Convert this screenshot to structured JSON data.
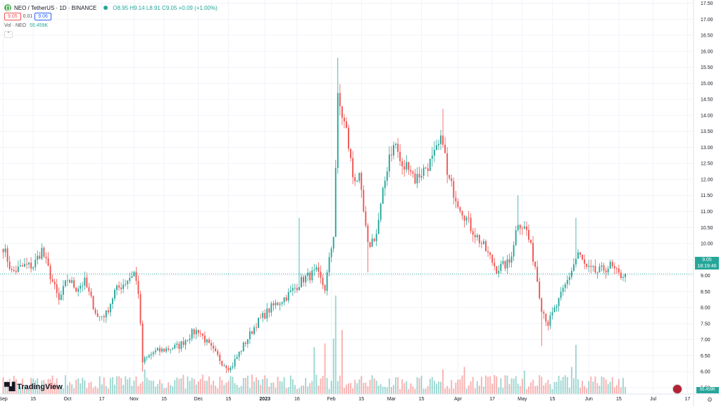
{
  "header": {
    "title": "NEO / TetherUS · 1D · BINANCE",
    "ohlc": "O8.95 H9.14 L8.91 C9.05 +0.09 (+1.00%)",
    "sell_price": "9.05",
    "spread": "0.01",
    "buy_price": "9.06",
    "volume_label": "Vol · NEO",
    "volume_value": "55.459K",
    "collapse_icon": "chevron-up-icon"
  },
  "branding": {
    "logo_text": "TradingView"
  },
  "last_price": {
    "value": "9.05",
    "countdown": "18:19:46"
  },
  "last_volume": "55.459K",
  "colors": {
    "up": "#26a69a",
    "down": "#ef5350",
    "grid": "#f0f3fa",
    "axis_text": "#131722"
  },
  "chart_data": {
    "type": "candlestick",
    "title": "NEO / TetherUS · 1D · BINANCE",
    "ylim": [
      5.3,
      17.6
    ],
    "y_ticks": [
      "5.50",
      "6.00",
      "6.50",
      "7.00",
      "7.50",
      "8.00",
      "8.50",
      "9.00",
      "9.50",
      "10.00",
      "10.50",
      "11.00",
      "11.50",
      "12.00",
      "12.50",
      "13.00",
      "13.50",
      "14.00",
      "14.50",
      "15.00",
      "15.50",
      "16.00",
      "16.50",
      "17.00",
      "17.50"
    ],
    "x_ticks": [
      "Sep",
      "15",
      "Oct",
      "17",
      "Nov",
      "15",
      "Dec",
      "15",
      "2023",
      "16",
      "Feb",
      "15",
      "Mar",
      "15",
      "Apr",
      "17",
      "May",
      "15",
      "Jun",
      "15",
      "Jul",
      "17"
    ],
    "x_tick_days": [
      0,
      14,
      30,
      46,
      61,
      75,
      91,
      105,
      122,
      137,
      153,
      167,
      181,
      195,
      212,
      228,
      242,
      256,
      273,
      287,
      303,
      319
    ],
    "total_days": 322,
    "anchors": [
      [
        0,
        9.9
      ],
      [
        4,
        9.1
      ],
      [
        10,
        9.3
      ],
      [
        14,
        9.3
      ],
      [
        18,
        9.8
      ],
      [
        22,
        9.0
      ],
      [
        26,
        8.2
      ],
      [
        30,
        8.9
      ],
      [
        34,
        8.6
      ],
      [
        38,
        8.8
      ],
      [
        44,
        7.7
      ],
      [
        48,
        7.8
      ],
      [
        52,
        8.5
      ],
      [
        57,
        8.8
      ],
      [
        61,
        9.1
      ],
      [
        63,
        8.5
      ],
      [
        65,
        6.3
      ],
      [
        70,
        6.6
      ],
      [
        76,
        6.7
      ],
      [
        82,
        6.8
      ],
      [
        88,
        7.2
      ],
      [
        91,
        7.3
      ],
      [
        96,
        6.8
      ],
      [
        102,
        6.3
      ],
      [
        106,
        6.1
      ],
      [
        111,
        6.7
      ],
      [
        118,
        7.5
      ],
      [
        125,
        8.0
      ],
      [
        133,
        8.4
      ],
      [
        140,
        8.9
      ],
      [
        146,
        9.1
      ],
      [
        150,
        8.6
      ],
      [
        154,
        10.3
      ],
      [
        156,
        14.5
      ],
      [
        160,
        13.5
      ],
      [
        163,
        12.1
      ],
      [
        166,
        12.0
      ],
      [
        170,
        9.9
      ],
      [
        174,
        10.3
      ],
      [
        180,
        12.8
      ],
      [
        183,
        13.1
      ],
      [
        186,
        12.3
      ],
      [
        189,
        12.5
      ],
      [
        192,
        12.0
      ],
      [
        196,
        12.3
      ],
      [
        200,
        12.6
      ],
      [
        205,
        13.3
      ],
      [
        207,
        12.1
      ],
      [
        212,
        11.3
      ],
      [
        218,
        10.5
      ],
      [
        224,
        9.9
      ],
      [
        230,
        9.2
      ],
      [
        236,
        9.4
      ],
      [
        240,
        10.7
      ],
      [
        244,
        10.4
      ],
      [
        248,
        9.3
      ],
      [
        251,
        8.0
      ],
      [
        254,
        7.5
      ],
      [
        259,
        8.2
      ],
      [
        264,
        9.0
      ],
      [
        268,
        9.7
      ],
      [
        272,
        9.2
      ],
      [
        277,
        9.1
      ],
      [
        283,
        9.3
      ],
      [
        287,
        9.0
      ],
      [
        290,
        9.05
      ]
    ],
    "extreme_highs": [
      [
        156,
        15.8
      ],
      [
        205,
        14.2
      ],
      [
        240,
        11.5
      ],
      [
        267,
        10.8
      ],
      [
        138,
        10.8
      ]
    ],
    "extreme_lows": [
      [
        65,
        6.0
      ],
      [
        104,
        5.95
      ],
      [
        251,
        6.8
      ],
      [
        170,
        9.1
      ]
    ],
    "volume_spikes": [
      [
        155,
        8.0
      ],
      [
        154,
        4.5
      ],
      [
        158,
        5.2
      ],
      [
        145,
        3.8
      ],
      [
        150,
        4.1
      ],
      [
        267,
        4.0
      ],
      [
        265,
        2.2
      ],
      [
        66,
        2.0
      ],
      [
        215,
        2.2
      ],
      [
        205,
        2.0
      ],
      [
        243,
        1.9
      ]
    ],
    "current_price": 9.05
  }
}
